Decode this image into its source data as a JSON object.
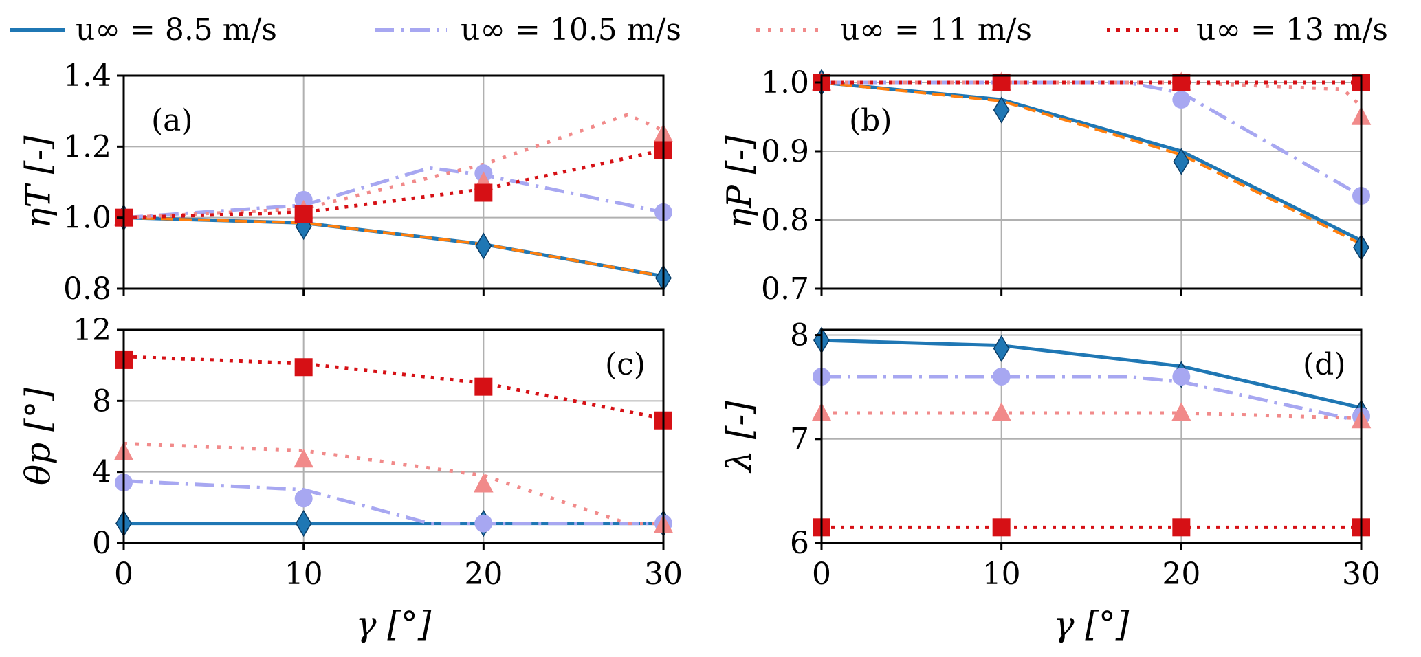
{
  "legend": [
    {
      "key": "s85",
      "label": "u∞ = 8.5 m/s",
      "color": "#1f77b4",
      "dash": "solid"
    },
    {
      "key": "s105",
      "label": "u∞ = 10.5 m/s",
      "color": "#a7a7f1",
      "dash": "dashdot"
    },
    {
      "key": "s11",
      "label": "u∞ = 11 m/s",
      "color": "#f18a8a",
      "dash": "dotted_light"
    },
    {
      "key": "s13",
      "label": "u∞ = 13 m/s",
      "color": "#d61015",
      "dash": "dotted"
    }
  ],
  "colors": {
    "ref": "#ff7f0e",
    "grid": "#b0b0b0",
    "axis": "#000000"
  },
  "chart_data": [
    {
      "id": "a",
      "type": "line",
      "panel_label": "(a)",
      "xlabel": "",
      "ylabel": "ηT [-]",
      "xlim": [
        0,
        30
      ],
      "ylim": [
        0.8,
        1.4
      ],
      "xticks": [
        0,
        10,
        20,
        30
      ],
      "xticklabels": [
        "",
        "",
        "",
        ""
      ],
      "yticks": [
        0.8,
        1.0,
        1.2,
        1.4
      ],
      "yticklabels": [
        "0.8",
        "1.0",
        "1.2",
        "1.4"
      ],
      "series": [
        {
          "key": "s85",
          "line_x": [
            0,
            10,
            20,
            30
          ],
          "line_y": [
            1.0,
            0.985,
            0.925,
            0.835
          ],
          "marker": "diamond",
          "points_x": [
            0,
            10,
            20,
            30
          ],
          "points_y": [
            1.0,
            0.975,
            0.92,
            0.83
          ]
        },
        {
          "key": "ref",
          "line_x": [
            0,
            10,
            20,
            30
          ],
          "line_y": [
            1.0,
            0.985,
            0.925,
            0.835
          ],
          "marker": "none",
          "points_x": [],
          "points_y": []
        },
        {
          "key": "s105",
          "line_x": [
            0,
            10,
            17,
            20,
            30
          ],
          "line_y": [
            1.0,
            1.035,
            1.14,
            1.12,
            1.015
          ],
          "marker": "circle",
          "points_x": [
            0,
            10,
            20,
            30
          ],
          "points_y": [
            1.0,
            1.05,
            1.125,
            1.015
          ]
        },
        {
          "key": "s11",
          "line_x": [
            0,
            10,
            20,
            28,
            30
          ],
          "line_y": [
            1.0,
            1.025,
            1.15,
            1.29,
            1.245
          ],
          "marker": "triangle",
          "points_x": [
            0,
            10,
            20,
            30
          ],
          "points_y": [
            1.0,
            1.02,
            1.1,
            1.235
          ]
        },
        {
          "key": "s13",
          "line_x": [
            0,
            10,
            20,
            30
          ],
          "line_y": [
            1.0,
            1.015,
            1.08,
            1.19
          ],
          "marker": "square",
          "points_x": [
            0,
            10,
            20,
            30
          ],
          "points_y": [
            1.0,
            1.01,
            1.07,
            1.19
          ]
        }
      ]
    },
    {
      "id": "b",
      "type": "line",
      "panel_label": "(b)",
      "xlabel": "",
      "ylabel": "ηP [-]",
      "xlim": [
        0,
        30
      ],
      "ylim": [
        0.7,
        1.01
      ],
      "xticks": [
        0,
        10,
        20,
        30
      ],
      "xticklabels": [
        "",
        "",
        "",
        ""
      ],
      "yticks": [
        0.7,
        0.8,
        0.9,
        1.0
      ],
      "yticklabels": [
        "0.7",
        "0.8",
        "0.9",
        "1.0"
      ],
      "series": [
        {
          "key": "s85",
          "line_x": [
            0,
            10,
            20,
            30
          ],
          "line_y": [
            1.0,
            0.975,
            0.9,
            0.77
          ],
          "marker": "diamond",
          "points_x": [
            0,
            10,
            20,
            30
          ],
          "points_y": [
            1.0,
            0.96,
            0.885,
            0.76
          ]
        },
        {
          "key": "ref",
          "line_x": [
            0,
            10,
            20,
            30
          ],
          "line_y": [
            1.0,
            0.973,
            0.895,
            0.765
          ],
          "marker": "none",
          "points_x": [],
          "points_y": []
        },
        {
          "key": "s105",
          "line_x": [
            0,
            10,
            17,
            20,
            30
          ],
          "line_y": [
            1.0,
            1.0,
            1.0,
            0.985,
            0.835
          ],
          "marker": "circle",
          "points_x": [
            0,
            10,
            20,
            30
          ],
          "points_y": [
            1.0,
            1.0,
            0.975,
            0.835
          ]
        },
        {
          "key": "s11",
          "line_x": [
            0,
            10,
            20,
            29,
            30
          ],
          "line_y": [
            1.0,
            1.0,
            1.0,
            0.99,
            0.965
          ],
          "marker": "triangle",
          "points_x": [
            0,
            10,
            20,
            30
          ],
          "points_y": [
            1.0,
            1.0,
            1.0,
            0.95
          ]
        },
        {
          "key": "s13",
          "line_x": [
            0,
            10,
            20,
            30
          ],
          "line_y": [
            1.0,
            1.0,
            1.0,
            1.0
          ],
          "marker": "square",
          "points_x": [
            0,
            10,
            20,
            30
          ],
          "points_y": [
            1.0,
            1.0,
            1.0,
            1.0
          ]
        }
      ]
    },
    {
      "id": "c",
      "type": "line",
      "panel_label": "(c)",
      "xlabel": "γ [°]",
      "ylabel": "θp [°]",
      "xlim": [
        0,
        30
      ],
      "ylim": [
        0,
        12
      ],
      "xticks": [
        0,
        10,
        20,
        30
      ],
      "xticklabels": [
        "0",
        "10",
        "20",
        "30"
      ],
      "yticks": [
        0,
        4,
        8,
        12
      ],
      "yticklabels": [
        "0",
        "4",
        "8",
        "12"
      ],
      "series": [
        {
          "key": "s85",
          "line_x": [
            0,
            10,
            20,
            30
          ],
          "line_y": [
            1.1,
            1.1,
            1.1,
            1.1
          ],
          "marker": "diamond",
          "points_x": [
            0,
            10,
            20,
            30
          ],
          "points_y": [
            1.1,
            1.1,
            1.1,
            1.1
          ]
        },
        {
          "key": "s105",
          "line_x": [
            0,
            10,
            17,
            20,
            30
          ],
          "line_y": [
            3.5,
            3.0,
            1.1,
            1.1,
            1.1
          ],
          "marker": "circle",
          "points_x": [
            0,
            10,
            20,
            30
          ],
          "points_y": [
            3.4,
            2.5,
            1.1,
            1.1
          ]
        },
        {
          "key": "s11",
          "line_x": [
            0,
            10,
            20,
            28,
            30
          ],
          "line_y": [
            5.6,
            5.2,
            3.8,
            1.1,
            1.1
          ],
          "marker": "triangle",
          "points_x": [
            0,
            10,
            20,
            30
          ],
          "points_y": [
            5.1,
            4.7,
            3.3,
            1.0
          ]
        },
        {
          "key": "s13",
          "line_x": [
            0,
            10,
            20,
            30
          ],
          "line_y": [
            10.5,
            10.1,
            9.0,
            7.0
          ],
          "marker": "square",
          "points_x": [
            0,
            10,
            20,
            30
          ],
          "points_y": [
            10.3,
            9.9,
            8.8,
            6.9
          ]
        }
      ]
    },
    {
      "id": "d",
      "type": "line",
      "panel_label": "(d)",
      "xlabel": "γ [°]",
      "ylabel": "λ [-]",
      "xlim": [
        0,
        30
      ],
      "ylim": [
        6,
        8.05
      ],
      "xticks": [
        0,
        10,
        20,
        30
      ],
      "xticklabels": [
        "0",
        "10",
        "20",
        "30"
      ],
      "yticks": [
        6,
        7,
        8
      ],
      "yticklabels": [
        "6",
        "7",
        "8"
      ],
      "series": [
        {
          "key": "s85",
          "line_x": [
            0,
            10,
            20,
            30
          ],
          "line_y": [
            7.95,
            7.9,
            7.7,
            7.3
          ],
          "marker": "diamond",
          "points_x": [
            0,
            10,
            20,
            30
          ],
          "points_y": [
            7.95,
            7.87,
            7.62,
            7.25
          ]
        },
        {
          "key": "s105",
          "line_x": [
            0,
            10,
            17,
            20,
            30
          ],
          "line_y": [
            7.6,
            7.6,
            7.6,
            7.55,
            7.17
          ],
          "marker": "circle",
          "points_x": [
            0,
            10,
            20,
            30
          ],
          "points_y": [
            7.6,
            7.6,
            7.6,
            7.22
          ]
        },
        {
          "key": "s11",
          "line_x": [
            0,
            10,
            20,
            30
          ],
          "line_y": [
            7.25,
            7.25,
            7.25,
            7.2
          ],
          "marker": "triangle",
          "points_x": [
            0,
            10,
            20,
            30
          ],
          "points_y": [
            7.25,
            7.25,
            7.25,
            7.18
          ]
        },
        {
          "key": "s13",
          "line_x": [
            0,
            10,
            20,
            30
          ],
          "line_y": [
            6.15,
            6.15,
            6.15,
            6.15
          ],
          "marker": "square",
          "points_x": [
            0,
            10,
            20,
            30
          ],
          "points_y": [
            6.15,
            6.15,
            6.15,
            6.15
          ]
        }
      ]
    }
  ]
}
